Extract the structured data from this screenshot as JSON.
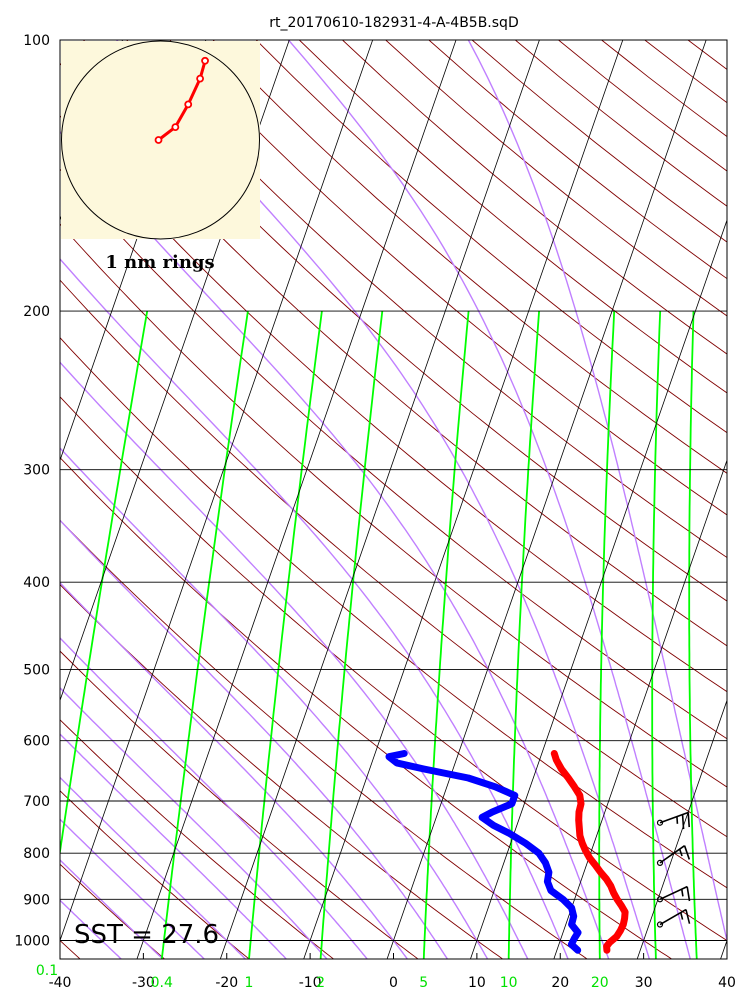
{
  "title": "rt_20170610-182931-4-A-4B5B.sqD",
  "sst_label": "SST = 27.6",
  "hodograph_label": "1 nm rings",
  "colors": {
    "temperature": "#ff0000",
    "dewpoint": "#0000ff",
    "dry_adiabat": "#800000",
    "moist_adiabat": "#c080ff",
    "mixing_ratio": "#00ff00",
    "isotherm": "#000000",
    "hodograph_bg": "#fdf8dc",
    "mixing_ratio_labels": "#00e000"
  },
  "chart_data": {
    "type": "skew-T log-P sounding",
    "y_axis": {
      "scale": "log",
      "ticks": [
        "100",
        "200",
        "300",
        "400",
        "500",
        "600",
        "700",
        "800",
        "900",
        "1000"
      ],
      "range": [
        100,
        1050
      ]
    },
    "x_axis": {
      "ticks": [
        "-40",
        "-30",
        "-20",
        "-10",
        "0",
        "10",
        "20",
        "30",
        "40"
      ],
      "range": [
        -40,
        40
      ]
    },
    "mixing_ratio_ticks": [
      "0.1",
      "0.4",
      "1",
      "2",
      "5",
      "10",
      "20"
    ],
    "temperature_profile": [
      {
        "p": 1025,
        "t": 26.0
      },
      {
        "p": 1015,
        "t": 25.8
      },
      {
        "p": 1005,
        "t": 26.0
      },
      {
        "p": 990,
        "t": 26.6
      },
      {
        "p": 975,
        "t": 26.8
      },
      {
        "p": 960,
        "t": 26.9
      },
      {
        "p": 945,
        "t": 26.8
      },
      {
        "p": 930,
        "t": 26.6
      },
      {
        "p": 915,
        "t": 25.9
      },
      {
        "p": 900,
        "t": 25.1
      },
      {
        "p": 885,
        "t": 24.4
      },
      {
        "p": 870,
        "t": 23.8
      },
      {
        "p": 855,
        "t": 23.0
      },
      {
        "p": 840,
        "t": 22.0
      },
      {
        "p": 825,
        "t": 21.1
      },
      {
        "p": 810,
        "t": 20.1
      },
      {
        "p": 795,
        "t": 19.3
      },
      {
        "p": 780,
        "t": 18.6
      },
      {
        "p": 765,
        "t": 18.0
      },
      {
        "p": 750,
        "t": 17.6
      },
      {
        "p": 735,
        "t": 17.2
      },
      {
        "p": 720,
        "t": 16.9
      },
      {
        "p": 705,
        "t": 16.8
      },
      {
        "p": 690,
        "t": 16.3
      },
      {
        "p": 675,
        "t": 15.3
      },
      {
        "p": 660,
        "t": 14.2
      },
      {
        "p": 645,
        "t": 13.0
      },
      {
        "p": 630,
        "t": 12.0
      },
      {
        "p": 620,
        "t": 11.5
      }
    ],
    "dewpoint_profile": [
      {
        "p": 1025,
        "t": 22.5
      },
      {
        "p": 1010,
        "t": 21.5
      },
      {
        "p": 995,
        "t": 21.6
      },
      {
        "p": 980,
        "t": 21.8
      },
      {
        "p": 960,
        "t": 20.7
      },
      {
        "p": 940,
        "t": 20.6
      },
      {
        "p": 920,
        "t": 20.0
      },
      {
        "p": 900,
        "t": 18.6
      },
      {
        "p": 880,
        "t": 16.8
      },
      {
        "p": 860,
        "t": 16.0
      },
      {
        "p": 840,
        "t": 15.8
      },
      {
        "p": 820,
        "t": 15.0
      },
      {
        "p": 800,
        "t": 13.8
      },
      {
        "p": 780,
        "t": 11.8
      },
      {
        "p": 760,
        "t": 9.4
      },
      {
        "p": 745,
        "t": 7.2
      },
      {
        "p": 730,
        "t": 5.5
      },
      {
        "p": 720,
        "t": 6.5
      },
      {
        "p": 705,
        "t": 8.5
      },
      {
        "p": 690,
        "t": 8.5
      },
      {
        "p": 675,
        "t": 5.8
      },
      {
        "p": 660,
        "t": 2.2
      },
      {
        "p": 645,
        "t": -3.5
      },
      {
        "p": 635,
        "t": -7.0
      },
      {
        "p": 625,
        "t": -8.2
      },
      {
        "p": 620,
        "t": -6.5
      }
    ],
    "wind_barbs": [
      {
        "p": 960,
        "speed_kt": 15,
        "dir_deg": 240
      },
      {
        "p": 900,
        "speed_kt": 15,
        "dir_deg": 245
      },
      {
        "p": 820,
        "speed_kt": 15,
        "dir_deg": 235
      },
      {
        "p": 740,
        "speed_kt": 25,
        "dir_deg": 250
      }
    ],
    "hodograph_points": [
      {
        "u": -0.02,
        "v": 0.0
      },
      {
        "u": 0.15,
        "v": 0.13
      },
      {
        "u": 0.28,
        "v": 0.36
      },
      {
        "u": 0.4,
        "v": 0.62
      },
      {
        "u": 0.45,
        "v": 0.8
      }
    ]
  }
}
